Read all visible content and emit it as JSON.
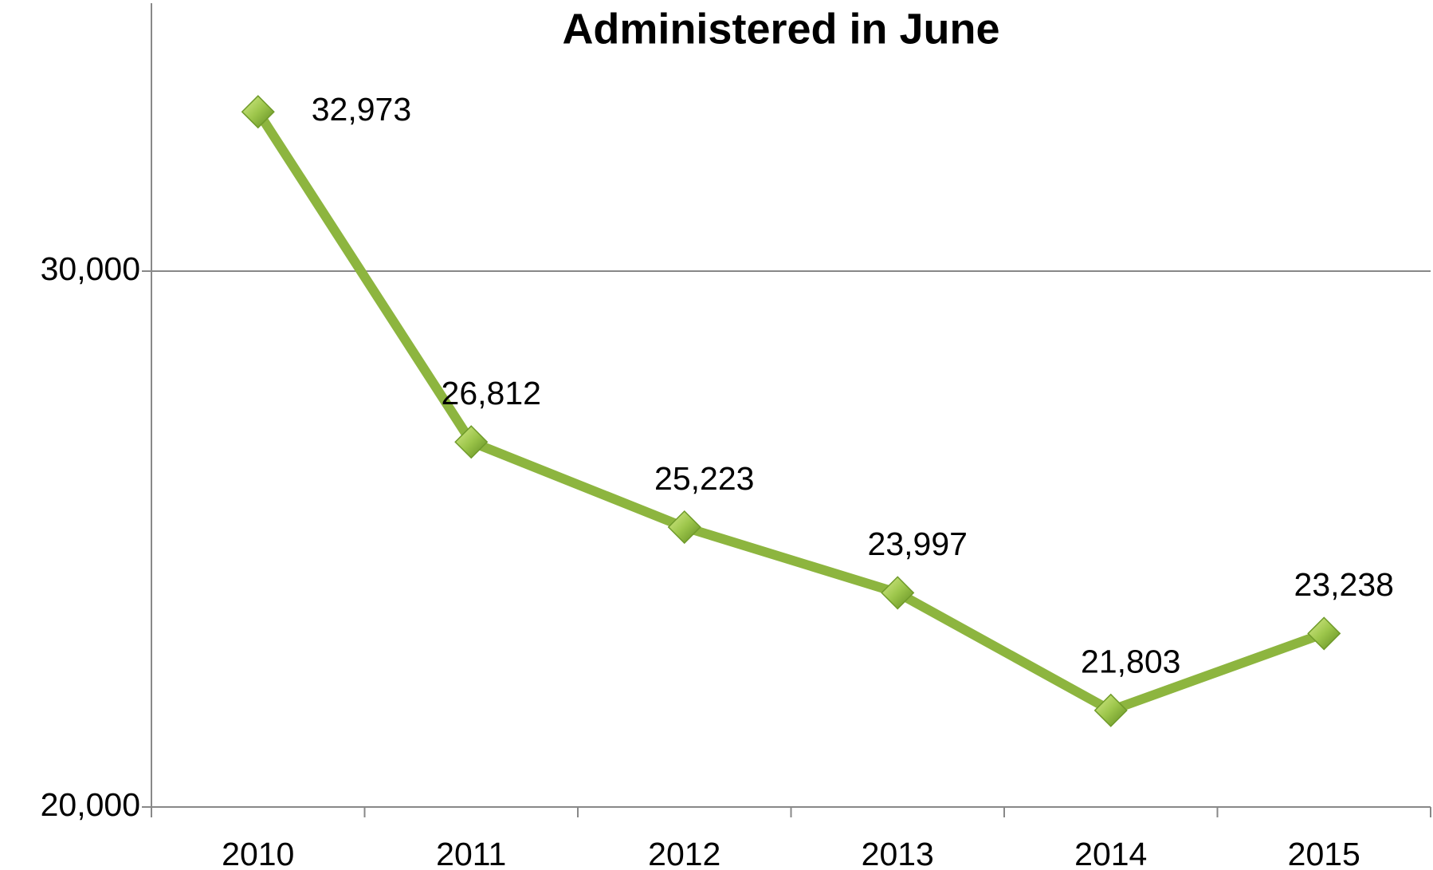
{
  "chart_data": {
    "type": "line",
    "title": "Administered in June",
    "categories": [
      "2010",
      "2011",
      "2012",
      "2013",
      "2014",
      "2015"
    ],
    "series": [
      {
        "name": "Administered in June",
        "color": "#8db53f",
        "values": [
          32973,
          26812,
          25223,
          23997,
          21803,
          23238
        ],
        "value_labels": [
          "32,973",
          "26,812",
          "25,223",
          "23,997",
          "21,803",
          "23,238"
        ]
      }
    ],
    "ylim": [
      20000,
      35000
    ],
    "yticks": [
      {
        "value": 20000,
        "label": "20,000"
      },
      {
        "value": 30000,
        "label": "30,000"
      }
    ],
    "grid": true
  }
}
